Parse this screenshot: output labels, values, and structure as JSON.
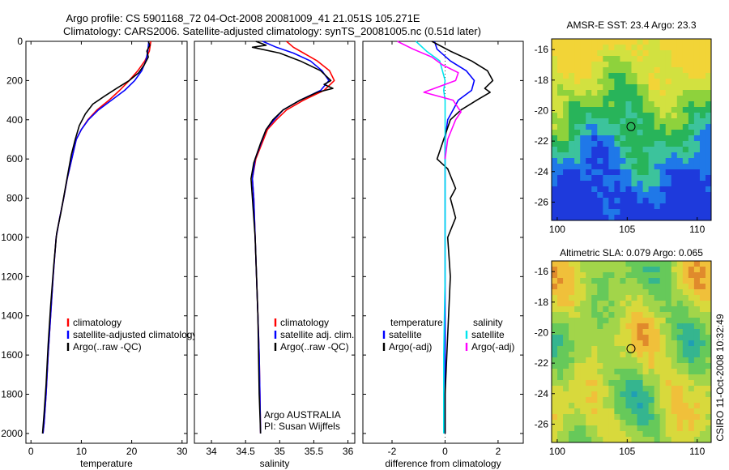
{
  "header": {
    "title_line1": "Argo profile: CS 5901168_72 04-Oct-2008 20081009_41 21.051S 105.271E",
    "title_line2": "Climatology: CARS2006. Satellite-adjusted climatology: synTS_20081005.nc (0.51d later)"
  },
  "side_label": "CSIRO 11-Oct-2008 10:32:49",
  "colors": {
    "climatology": "#ff0000",
    "satellite": "#0000ff",
    "argo": "#000000",
    "salinity_satellite": "#00e5ee",
    "salinity_argo": "#ff00ff"
  },
  "chart_data": [
    {
      "id": "temperature",
      "type": "line",
      "xlabel": "temperature",
      "ylabel": "",
      "xlim": [
        -1,
        31
      ],
      "ylim": [
        2050,
        0
      ],
      "y_inverted": true,
      "xticks": [
        0,
        10,
        20,
        30
      ],
      "yticks": [
        0,
        200,
        400,
        600,
        800,
        1000,
        1200,
        1400,
        1600,
        1800,
        2000
      ],
      "legend": {
        "placement": "lower-center",
        "entries": [
          "climatology",
          "satellite-adjusted climatology",
          "Argo(..raw -QC)"
        ]
      },
      "series": [
        {
          "name": "climatology",
          "color": "#ff0000",
          "x": [
            23.8,
            23.5,
            22.6,
            21.2,
            19.5,
            17.6,
            15.5,
            13.1,
            11.3,
            10.0,
            9.0,
            8.1,
            7.2,
            6.5,
            5.7,
            5.0,
            4.4,
            3.9,
            3.4,
            3.0,
            2.6,
            2.4
          ],
          "y": [
            0,
            50,
            100,
            150,
            200,
            250,
            300,
            350,
            400,
            450,
            500,
            600,
            700,
            800,
            900,
            1000,
            1200,
            1400,
            1600,
            1800,
            1950,
            2000
          ]
        },
        {
          "name": "satellite-adjusted climatology",
          "color": "#0000ff",
          "x": [
            23.4,
            23.2,
            22.8,
            22.0,
            20.6,
            18.6,
            16.0,
            13.4,
            11.4,
            10.0,
            9.0,
            8.1,
            7.2,
            6.5,
            5.7,
            5.0,
            4.4,
            3.9,
            3.4,
            3.0,
            2.6,
            2.4
          ],
          "y": [
            0,
            50,
            100,
            150,
            200,
            250,
            300,
            350,
            400,
            450,
            500,
            600,
            700,
            800,
            900,
            1000,
            1200,
            1400,
            1600,
            1800,
            1950,
            2000
          ]
        },
        {
          "name": "Argo(..raw -QC)",
          "color": "#000000",
          "x": [
            23.3,
            23.6,
            23.0,
            23.3,
            22.5,
            21.4,
            19.5,
            17.0,
            14.6,
            12.3,
            10.8,
            9.6,
            8.8,
            8.0,
            7.3,
            6.6,
            5.9,
            5.1,
            4.5,
            3.9,
            3.4,
            3.0,
            2.6,
            2.3
          ],
          "y": [
            0,
            20,
            50,
            80,
            120,
            160,
            200,
            240,
            280,
            320,
            370,
            430,
            500,
            580,
            680,
            780,
            880,
            980,
            1150,
            1350,
            1550,
            1750,
            1900,
            2000
          ]
        }
      ]
    },
    {
      "id": "salinity",
      "type": "line",
      "xlabel": "salinity",
      "ylabel": "",
      "xlim": [
        33.75,
        36.1
      ],
      "ylim": [
        2050,
        0
      ],
      "y_inverted": true,
      "xticks": [
        34,
        34.5,
        35,
        35.5,
        36
      ],
      "legend": {
        "placement": "lower-right",
        "entries": [
          "climatology",
          "satellite adj. clim.",
          "Argo(..raw -QC)"
        ]
      },
      "annotation": [
        "Argo AUSTRALIA",
        "PI: Susan Wijffels"
      ],
      "series": [
        {
          "name": "climatology",
          "color": "#ff0000",
          "x": [
            35.1,
            35.2,
            35.35,
            35.55,
            35.73,
            35.8,
            35.65,
            35.35,
            35.1,
            34.95,
            34.82,
            34.65,
            34.6,
            34.62,
            34.64,
            34.66,
            34.68,
            34.7,
            34.71,
            34.72
          ],
          "y": [
            0,
            30,
            60,
            100,
            150,
            200,
            250,
            300,
            350,
            400,
            450,
            600,
            700,
            800,
            1000,
            1200,
            1400,
            1600,
            1800,
            2000
          ]
        },
        {
          "name": "satellite adj. clim.",
          "color": "#0000ff",
          "x": [
            34.75,
            34.95,
            35.2,
            35.45,
            35.62,
            35.72,
            35.6,
            35.3,
            35.05,
            34.92,
            34.8,
            34.64,
            34.6,
            34.62,
            34.64,
            34.66,
            34.68,
            34.7,
            34.71,
            34.72
          ],
          "y": [
            0,
            30,
            60,
            100,
            150,
            200,
            250,
            300,
            350,
            400,
            450,
            600,
            700,
            800,
            1000,
            1200,
            1400,
            1600,
            1800,
            2000
          ]
        },
        {
          "name": "Argo(..raw -QC)",
          "color": "#000000",
          "x": [
            34.65,
            34.8,
            34.6,
            35.0,
            35.3,
            35.6,
            35.75,
            35.65,
            35.78,
            35.55,
            35.3,
            35.05,
            34.9,
            34.8,
            34.72,
            34.62,
            34.58,
            34.6,
            34.64,
            34.68,
            34.7,
            34.72
          ],
          "y": [
            0,
            20,
            30,
            60,
            100,
            150,
            200,
            220,
            240,
            260,
            300,
            350,
            400,
            450,
            520,
            620,
            700,
            800,
            1000,
            1400,
            1800,
            2000
          ]
        }
      ]
    },
    {
      "id": "difference",
      "type": "line",
      "xlabel": "difference from climatology",
      "ylabel": "",
      "xlim": [
        -3.1,
        2.95
      ],
      "ylim": [
        2050,
        0
      ],
      "y_inverted": true,
      "xticks": [
        -2,
        0,
        2
      ],
      "legend": {
        "placement": "lower-center",
        "groups": [
          {
            "title": "temperature",
            "entries": [
              "satellite",
              "Argo(-adj)"
            ]
          },
          {
            "title": "salinity",
            "entries": [
              "satellite",
              "Argo(-adj)"
            ]
          }
        ]
      },
      "series": [
        {
          "name": "temperature satellite",
          "color": "#0000ff",
          "x": [
            -0.4,
            -0.3,
            0.2,
            0.8,
            1.1,
            1.0,
            0.5,
            0.3,
            0.1,
            0.0,
            0.0,
            0.0,
            0.0,
            0.0,
            0.0,
            0.0
          ],
          "y": [
            0,
            40,
            100,
            150,
            200,
            250,
            300,
            350,
            400,
            500,
            700,
            900,
            1200,
            1500,
            1800,
            2000
          ]
        },
        {
          "name": "temperature Argo(-adj)",
          "color": "#000000",
          "x": [
            -0.5,
            0.2,
            1.0,
            1.6,
            1.8,
            1.5,
            1.7,
            1.2,
            0.6,
            0.2,
            -0.3,
            0.1,
            0.4,
            0.2,
            0.4,
            0.1,
            0.2,
            0.1,
            0.0,
            0.0
          ],
          "y": [
            0,
            50,
            100,
            150,
            200,
            240,
            260,
            300,
            350,
            400,
            600,
            650,
            750,
            800,
            900,
            1000,
            1200,
            1500,
            1800,
            2000
          ]
        },
        {
          "name": "salinity satellite",
          "color": "#00e5ee",
          "x": [
            -1.1,
            -0.7,
            -0.2,
            -0.1,
            0.0,
            -0.05,
            0.0,
            0.0,
            0.0,
            0.0,
            0.0,
            -0.05,
            -0.05
          ],
          "y": [
            0,
            50,
            100,
            150,
            200,
            250,
            300,
            400,
            600,
            800,
            1200,
            1600,
            2000
          ]
        },
        {
          "name": "salinity Argo(-adj)",
          "color": "#ff00ff",
          "x": [
            -1.8,
            -1.2,
            -0.5,
            -0.1,
            0.5,
            0.4,
            -0.8,
            0.3,
            0.5,
            0.6,
            0.4,
            0.1,
            0.0
          ],
          "y": [
            0,
            40,
            80,
            120,
            160,
            200,
            260,
            300,
            340,
            360,
            400,
            500,
            600
          ]
        }
      ]
    },
    {
      "id": "sst_map",
      "type": "heatmap",
      "title": "AMSR-E SST: 23.4 Argo: 23.3",
      "xlim": [
        99.6,
        111
      ],
      "ylim": [
        -27.2,
        -15.3
      ],
      "xticks": [
        100,
        105,
        110
      ],
      "yticks": [
        -16,
        -18,
        -20,
        -22,
        -24,
        -26
      ],
      "marker": {
        "x": 105.271,
        "y": -21.051
      },
      "palette": [
        "#1e3adc",
        "#1f78e8",
        "#3cc39c",
        "#28b45a",
        "#8ed23c",
        "#d2e140",
        "#f2d437"
      ]
    },
    {
      "id": "sla_map",
      "type": "heatmap",
      "title": "Altimetric SLA: 0.079 Argo: 0.065",
      "xlim": [
        99.6,
        111
      ],
      "ylim": [
        -27.2,
        -15.3
      ],
      "xticks": [
        100,
        105,
        110
      ],
      "yticks": [
        -16,
        -18,
        -20,
        -22,
        -24,
        -26
      ],
      "marker": {
        "x": 105.271,
        "y": -21.051
      },
      "palette": [
        "#1f9fb4",
        "#35b58f",
        "#66c95a",
        "#a2d54a",
        "#d8d93c",
        "#f0c03a",
        "#e08a2c"
      ]
    }
  ]
}
